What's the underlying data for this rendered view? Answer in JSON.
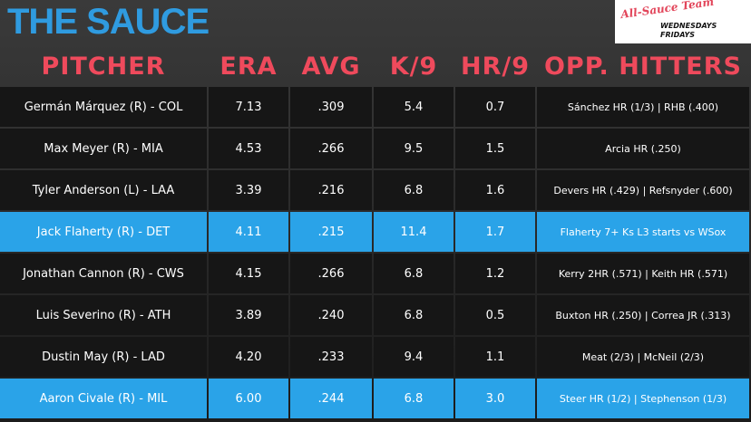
{
  "header": {
    "title": "THE SAUCE",
    "badge_title": "All-Sauce Team",
    "badge_days": [
      "WEDNESDAYS",
      "FRIDAYS"
    ]
  },
  "table": {
    "columns": [
      "PITCHER",
      "ERA",
      "AVG",
      "K/9",
      "HR/9",
      "OPP. HITTERS"
    ],
    "rows": [
      [
        "Germán Márquez (R) - COL",
        "7.13",
        ".309",
        "5.4",
        "0.7",
        "Sánchez HR (1/3) | RHB (.400)"
      ],
      [
        "Max Meyer (R) - MIA",
        "4.53",
        ".266",
        "9.5",
        "1.5",
        "Arcia HR (.250)"
      ],
      [
        "Tyler Anderson (L) - LAA",
        "3.39",
        ".216",
        "6.8",
        "1.6",
        "Devers HR (.429) | Refsnyder (.600)"
      ],
      [
        "Jack Flaherty (R) - DET",
        "4.11",
        ".215",
        "11.4",
        "1.7",
        "Flaherty 7+ Ks L3 starts vs WSox"
      ],
      [
        "Jonathan Cannon (R) - CWS",
        "4.15",
        ".266",
        "6.8",
        "1.2",
        "Kerry 2HR (.571) | Keith HR (.571)"
      ],
      [
        "Luis Severino (R) - ATH",
        "3.89",
        ".240",
        "6.8",
        "0.5",
        "Buxton HR (.250) | Correa JR (.313)"
      ],
      [
        "Dustin May (R) - LAD",
        "4.20",
        ".233",
        "9.4",
        "1.1",
        "Meat (2/3) | McNeil (2/3)"
      ],
      [
        "Aaron Civale (R) - MIL",
        "6.00",
        ".244",
        "6.8",
        "3.0",
        "Steer HR (1/2) | Stephenson (1/3)"
      ]
    ]
  }
}
